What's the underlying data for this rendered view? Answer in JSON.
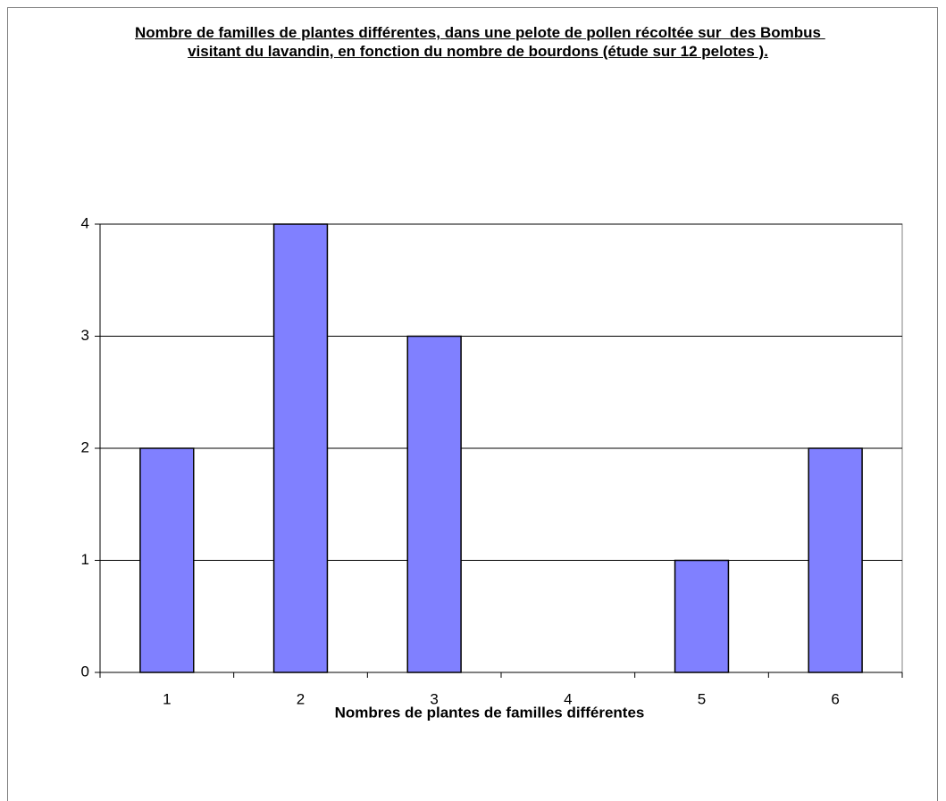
{
  "chart_data": {
    "type": "bar",
    "title": "Nombre de familles de plantes différentes, dans une pelote de pollen récoltée sur  des Bombus visitant du lavandin, en fonction du nombre de bourdons (étude sur 12 pelotes ).",
    "x_label": "Nombres de plantes de familles différentes",
    "categories": [
      "1",
      "2",
      "3",
      "4",
      "5",
      "6"
    ],
    "values": [
      2,
      4,
      3,
      0,
      1,
      2
    ],
    "color": "#8080ff",
    "ylim": [
      0,
      4
    ],
    "yticks": [
      0,
      1,
      2,
      3,
      4
    ],
    "grid": true
  }
}
